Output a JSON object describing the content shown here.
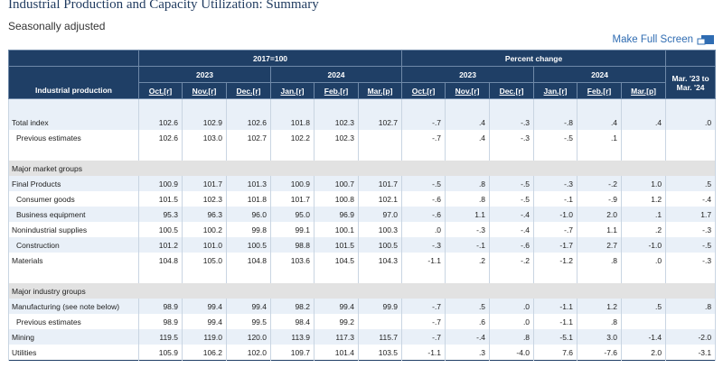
{
  "header": {
    "title": "Industrial Production and Capacity Utilization: Summary",
    "subtitle": "Seasonally adjusted",
    "full_screen": "Make Full Screen"
  },
  "table": {
    "row_label": "Industrial production",
    "groups": [
      {
        "label": "2017=100",
        "years": [
          {
            "label": "2023",
            "months": [
              "Oct.[r]",
              "Nov.[r]",
              "Dec.[r]"
            ]
          },
          {
            "label": "2024",
            "months": [
              "Jan.[r]",
              "Feb.[r]",
              "Mar.[p]"
            ]
          }
        ]
      },
      {
        "label": "Percent change",
        "years": [
          {
            "label": "2023",
            "months": [
              "Oct.[r]",
              "Nov.[r]",
              "Dec.[r]"
            ]
          },
          {
            "label": "2024",
            "months": [
              "Jan.[r]",
              "Feb.[r]",
              "Mar.[p]"
            ]
          }
        ]
      }
    ],
    "last": "Mar. '23 to Mar. '24",
    "rows": [
      {
        "label": "Total index",
        "values": [
          "102.6",
          "102.9",
          "102.6",
          "101.8",
          "102.3",
          "102.7",
          "-.7",
          ".4",
          "-.3",
          "-.8",
          ".4",
          ".4",
          ".0"
        ]
      },
      {
        "label": "Previous estimates",
        "indent": true,
        "values": [
          "102.6",
          "103.0",
          "102.7",
          "102.2",
          "102.3",
          null,
          "-.7",
          ".4",
          "-.3",
          "-.5",
          ".1",
          null,
          null
        ]
      },
      {
        "section": "Major market groups"
      },
      {
        "label": "Final Products",
        "values": [
          "100.9",
          "101.7",
          "101.3",
          "100.9",
          "100.7",
          "101.7",
          "-.5",
          ".8",
          "-.5",
          "-.3",
          "-.2",
          "1.0",
          ".5"
        ]
      },
      {
        "label": "Consumer goods",
        "indent": true,
        "values": [
          "101.5",
          "102.3",
          "101.8",
          "101.7",
          "100.8",
          "102.1",
          "-.6",
          ".8",
          "-.5",
          "-.1",
          "-.9",
          "1.2",
          "-.4"
        ]
      },
      {
        "label": "Business equipment",
        "indent": true,
        "values": [
          "95.3",
          "96.3",
          "96.0",
          "95.0",
          "96.9",
          "97.0",
          "-.6",
          "1.1",
          "-.4",
          "-1.0",
          "2.0",
          ".1",
          "1.7"
        ]
      },
      {
        "label": "Nonindustrial supplies",
        "values": [
          "100.5",
          "100.2",
          "99.8",
          "99.1",
          "100.1",
          "100.3",
          ".0",
          "-.3",
          "-.4",
          "-.7",
          "1.1",
          ".2",
          "-.3"
        ]
      },
      {
        "label": "Construction",
        "indent": true,
        "values": [
          "101.2",
          "101.0",
          "100.5",
          "98.8",
          "101.5",
          "100.5",
          "-.3",
          "-.1",
          "-.6",
          "-1.7",
          "2.7",
          "-1.0",
          "-.5"
        ]
      },
      {
        "label": "Materials",
        "values": [
          "104.8",
          "105.0",
          "104.8",
          "103.6",
          "104.5",
          "104.3",
          "-1.1",
          ".2",
          "-.2",
          "-1.2",
          ".8",
          ".0",
          "-.3"
        ]
      },
      {
        "section": "Major industry groups"
      },
      {
        "label": "Manufacturing (see note below)",
        "values": [
          "98.9",
          "99.4",
          "99.4",
          "98.2",
          "99.4",
          "99.9",
          "-.7",
          ".5",
          ".0",
          "-1.1",
          "1.2",
          ".5",
          ".8"
        ]
      },
      {
        "label": "Previous estimates",
        "indent": true,
        "values": [
          "98.9",
          "99.4",
          "99.5",
          "98.4",
          "99.2",
          null,
          "-.7",
          ".6",
          ".0",
          "-1.1",
          ".8",
          null,
          null
        ]
      },
      {
        "label": "Mining",
        "values": [
          "119.5",
          "119.0",
          "120.0",
          "113.9",
          "117.3",
          "115.7",
          "-.7",
          "-.4",
          ".8",
          "-5.1",
          "3.0",
          "-1.4",
          "-2.0"
        ]
      },
      {
        "label": "Utilities",
        "values": [
          "105.9",
          "106.2",
          "102.0",
          "109.7",
          "101.4",
          "103.5",
          "-1.1",
          ".3",
          "-4.0",
          "7.6",
          "-7.6",
          "2.0",
          "-3.1"
        ]
      }
    ]
  }
}
